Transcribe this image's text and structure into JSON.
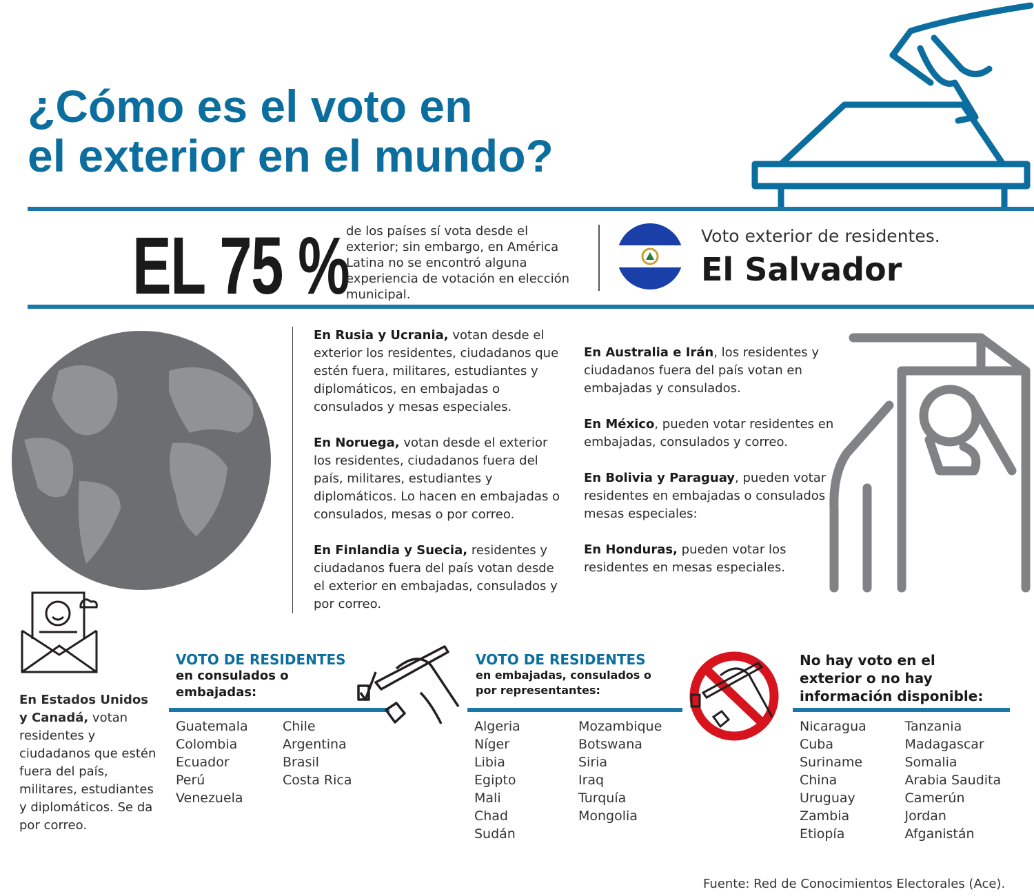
{
  "title": [
    "¿Cómo es el voto en",
    "el exterior en el mundo?"
  ],
  "stat": {
    "big": "EL 75 %",
    "text": "de los países sí vota desde el exterior; sin embargo, en América Latina no se encontró alguna experiencia de votación en elección municipal."
  },
  "country": {
    "subtitle": "Voto exterior de residentes.",
    "name": "El Salvador"
  },
  "paragraphs_left": [
    {
      "lead": "En Rusia y Ucrania,",
      "text": "votan desde el exterior los residentes, ciudadanos que estén fuera, militares, estudiantes y diplomáticos, en embajadas o consulados y mesas especiales."
    },
    {
      "lead": "En Noruega,",
      "text": "votan desde el exterior los residentes, ciudadanos fuera del país, militares, estudiantes y diplomáticos. Lo hacen en embajadas o consulados, mesas o por correo."
    },
    {
      "lead": "En Finlandia y Suecia,",
      "text": "residentes y ciudadanos fuera del país votan desde el exterior en embajadas, consulados y por correo."
    }
  ],
  "paragraphs_right": [
    {
      "lead": "En Australia e Irán",
      "text": ", los residentes y ciudadanos fuera del país votan en embajadas y consulados."
    },
    {
      "lead": "En México",
      "text": ", pueden votar residentes en embajadas, consulados y correo."
    },
    {
      "lead": "En Bolivia y Paraguay",
      "text": ", pueden votar residentes en embajadas o consulados y mesas especiales:"
    },
    {
      "lead": "En Honduras,",
      "text": "pueden votar los residentes en mesas especiales."
    }
  ],
  "usa": {
    "lead": "En Estados Unidos y Canadá,",
    "text": "votan residentes y ciudadanos que estén fuera del país, militares, estudiantes y diplomáticos. Se da por correo."
  },
  "groups": [
    {
      "title": "VOTO DE RESIDENTES",
      "subtitle": "en consulados o embajadas:",
      "items": [
        "Guatemala",
        "Colombia",
        "Ecuador",
        "Perú",
        "Venezuela",
        "Chile",
        "Argentina",
        "Brasil",
        "Costa Rica"
      ]
    },
    {
      "title": "VOTO DE RESIDENTES",
      "subtitle": "en embajadas, consulados o por representantes:",
      "items": [
        "Algeria",
        "Níger",
        "Libia",
        "Egipto",
        "Mali",
        "Chad",
        "Sudán",
        "Mozambique",
        "Botswana",
        "Siria",
        "Iraq",
        "Turquía",
        "Mongolia"
      ]
    },
    {
      "title": "No hay voto en el exterior o no hay información disponible:",
      "items": [
        "Nicaragua",
        "Cuba",
        "Suriname",
        "China",
        "Uruguay",
        "Zambia",
        "Etiopía",
        "Tanzania",
        "Madagascar",
        "Somalia",
        "Arabia Saudita",
        "Camerún",
        "Jordan",
        "Afganistán"
      ]
    }
  ],
  "source": "Fuente: Red de Conocimientos Electorales (Ace)."
}
